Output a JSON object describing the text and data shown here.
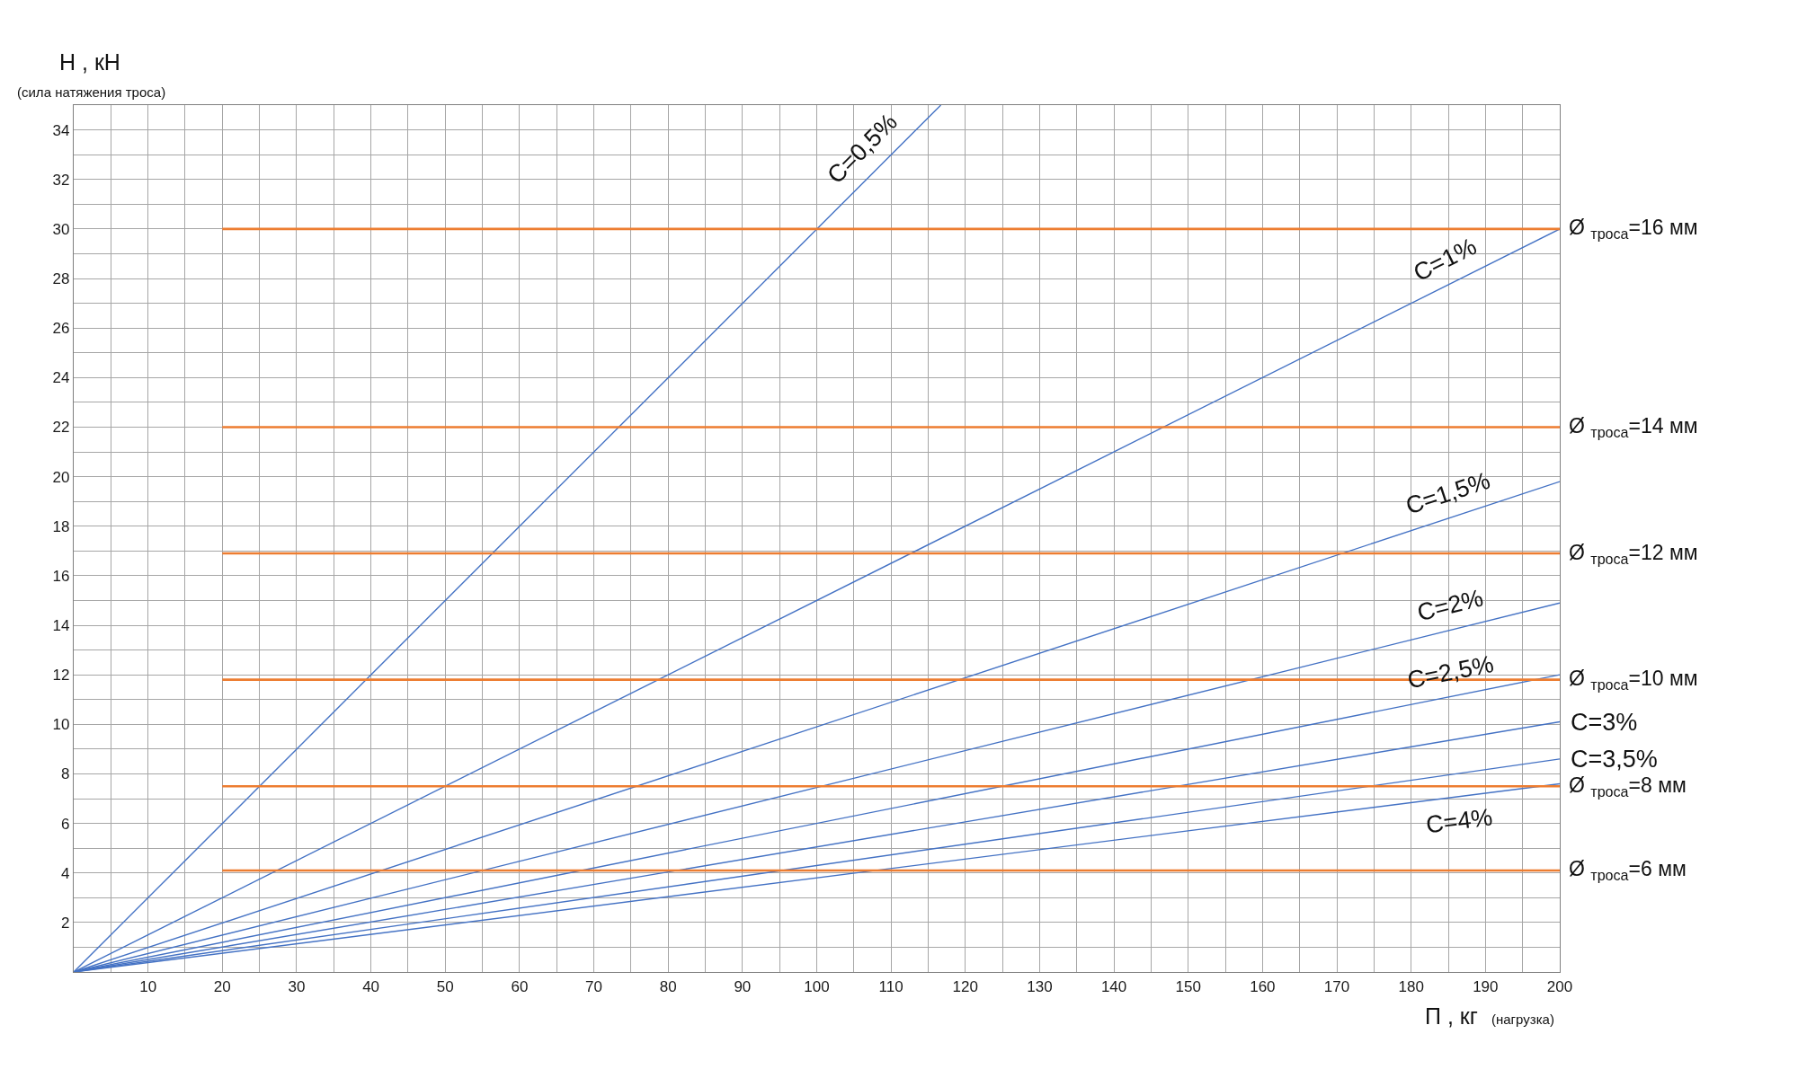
{
  "chart_data": {
    "type": "line",
    "xlabel": "П , кг",
    "ylabel": "Н , кН",
    "annotations": [
      "(сила натяжения троса)",
      "(нагрузка)"
    ],
    "xlim": [
      0,
      200
    ],
    "ylim": [
      0,
      35
    ],
    "xticks": [
      {
        "value": 5,
        "label": null
      },
      10,
      {
        "value": 15,
        "label": null
      },
      20,
      {
        "value": 25,
        "label": null
      },
      30,
      {
        "value": 35,
        "label": null
      },
      40,
      {
        "value": 45,
        "label": null
      },
      50,
      {
        "value": 55,
        "label": null
      },
      60,
      {
        "value": 65,
        "label": null
      },
      70,
      {
        "value": 75,
        "label": null
      },
      80,
      {
        "value": 85,
        "label": null
      },
      90,
      {
        "value": 95,
        "label": null
      },
      100,
      {
        "value": 105,
        "label": null
      },
      110,
      {
        "value": 115,
        "label": null
      },
      120,
      {
        "value": 125,
        "label": null
      },
      130,
      {
        "value": 135,
        "label": null
      },
      140,
      {
        "value": 145,
        "label": null
      },
      150,
      {
        "value": 155,
        "label": null
      },
      160,
      {
        "value": 165,
        "label": null
      },
      170,
      {
        "value": 175,
        "label": null
      },
      180,
      {
        "value": 185,
        "label": null
      },
      190,
      {
        "value": 195,
        "label": null
      },
      200
    ],
    "yticks": [
      {
        "value": 1,
        "label": null
      },
      2,
      {
        "value": 3,
        "label": null
      },
      4,
      {
        "value": 5,
        "label": null
      },
      6,
      {
        "value": 7,
        "label": null
      },
      8,
      {
        "value": 9,
        "label": null
      },
      10,
      {
        "value": 11,
        "label": null
      },
      12,
      {
        "value": 13,
        "label": null
      },
      14,
      {
        "value": 15,
        "label": null
      },
      16,
      {
        "value": 17,
        "label": null
      },
      18,
      {
        "value": 19,
        "label": null
      },
      20,
      {
        "value": 21,
        "label": null
      },
      22,
      {
        "value": 23,
        "label": null
      },
      24,
      {
        "value": 25,
        "label": null
      },
      26,
      {
        "value": 27,
        "label": null
      },
      28,
      {
        "value": 29,
        "label": null
      },
      30,
      {
        "value": 31,
        "label": null
      },
      32,
      {
        "value": 33,
        "label": null
      },
      34
    ],
    "grid": true,
    "legend": false,
    "series": [
      {
        "name": "C=0,5%",
        "color": "#4472c4",
        "x": [
          0,
          116.7
        ],
        "values": [
          0,
          35
        ]
      },
      {
        "name": "C=1%",
        "color": "#4472c4",
        "x": [
          0,
          200
        ],
        "values": [
          0,
          30
        ]
      },
      {
        "name": "C=1,5%",
        "color": "#4472c4",
        "x": [
          0,
          200
        ],
        "values": [
          0,
          19.8
        ]
      },
      {
        "name": "C=2%",
        "color": "#4472c4",
        "x": [
          0,
          200
        ],
        "values": [
          0,
          14.9
        ]
      },
      {
        "name": "C=2,5%",
        "color": "#4472c4",
        "x": [
          0,
          200
        ],
        "values": [
          0,
          12
        ]
      },
      {
        "name": "C=3%",
        "color": "#4472c4",
        "x": [
          0,
          200
        ],
        "values": [
          0,
          10.1
        ]
      },
      {
        "name": "C=3,5%",
        "color": "#4472c4",
        "x": [
          0,
          200
        ],
        "values": [
          0,
          8.6
        ]
      },
      {
        "name": "C=4%",
        "color": "#4472c4",
        "x": [
          0,
          200
        ],
        "values": [
          0,
          7.6
        ]
      },
      {
        "name": "Ø $_{троса}$=16 мм",
        "color": "#ed7d31",
        "x": [
          20,
          200
        ],
        "values": [
          30,
          30
        ]
      },
      {
        "name": "Ø $_{троса}$=14 мм",
        "color": "#ed7d31",
        "x": [
          20,
          200
        ],
        "values": [
          22,
          22
        ]
      },
      {
        "name": "Ø $_{троса}$=12 мм",
        "color": "#ed7d31",
        "x": [
          20,
          200
        ],
        "values": [
          16.9,
          16.9
        ]
      },
      {
        "name": "Ø $_{троса}$=10 мм",
        "color": "#ed7d31",
        "x": [
          20,
          200
        ],
        "values": [
          11.8,
          11.8
        ]
      },
      {
        "name": "Ø $_{троса}$=8 мм",
        "color": "#ed7d31",
        "x": [
          20,
          200
        ],
        "values": [
          7.5,
          7.5
        ]
      },
      {
        "name": "Ø $_{троса}$=6 мм",
        "color": "#ed7d31",
        "x": [
          20,
          200
        ],
        "values": [
          4.1,
          4.1
        ]
      }
    ]
  }
}
